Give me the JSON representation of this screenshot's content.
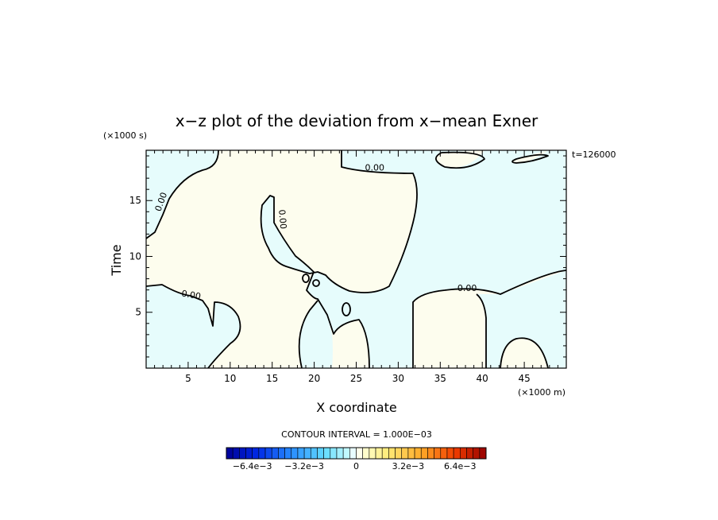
{
  "chart_data": {
    "type": "heatmap",
    "title": "x−z plot of the deviation from x−mean Exner",
    "xlabel": "X coordinate",
    "ylabel": "Time",
    "x_unit": "(×1000 m)",
    "y_unit": "(×1000 s)",
    "time_label": "t=126000",
    "xlim": [
      0,
      50
    ],
    "ylim": [
      0,
      19.5
    ],
    "x_ticks": [
      5,
      10,
      15,
      20,
      25,
      30,
      35,
      40,
      45
    ],
    "y_ticks": [
      5,
      10,
      15
    ],
    "contour_level_label": "0.00",
    "contour_interval_label": "CONTOUR INTERVAL = 1.000E−03",
    "colorbar": {
      "range": [
        -0.008,
        0.008
      ],
      "tick_labels": [
        "−6.4e−3",
        "−3.2e−3",
        "0",
        "3.2e−3",
        "6.4e−3"
      ],
      "tick_values": [
        -0.0064,
        -0.0032,
        0,
        0.0032,
        0.0064
      ]
    },
    "colors": {
      "negative_fill": "#e6fcfc",
      "positive_fill": "#fdfdee",
      "contour": "#000000"
    }
  }
}
